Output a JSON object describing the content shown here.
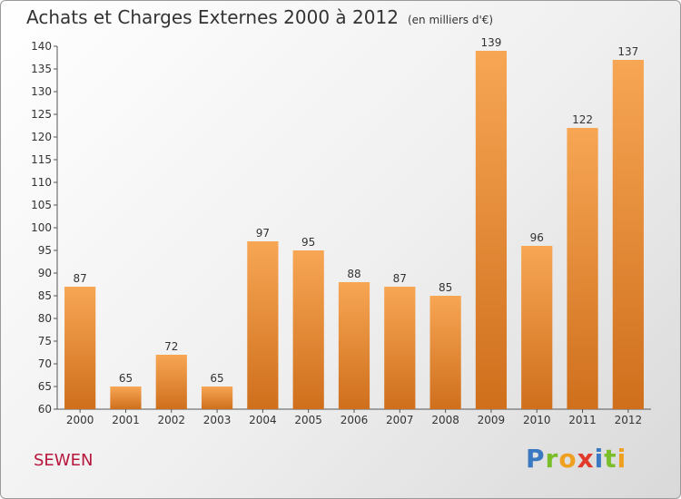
{
  "title": "Achats et Charges Externes 2000 à 2012",
  "unit": "(en milliers d'€)",
  "commune": "SEWEN",
  "logo": {
    "p": "P",
    "r": "r",
    "o": "o",
    "x": "x",
    "i": "i",
    "t": "t",
    "i2": "i"
  },
  "colors": {
    "bar_light": "#f7a654",
    "bar_dark": "#cf6f1c",
    "axis": "#555555",
    "grid": "#cccccc"
  },
  "chart_data": {
    "type": "bar",
    "title": "Achats et Charges Externes 2000 à 2012",
    "subtitle": "(en milliers d'€)",
    "categories": [
      "2000",
      "2001",
      "2002",
      "2003",
      "2004",
      "2005",
      "2006",
      "2007",
      "2008",
      "2009",
      "2010",
      "2011",
      "2012"
    ],
    "values": [
      87,
      65,
      72,
      65,
      97,
      95,
      88,
      87,
      85,
      139,
      96,
      122,
      137
    ],
    "ylim": [
      60,
      140
    ],
    "yticks": [
      60,
      65,
      70,
      75,
      80,
      85,
      90,
      95,
      100,
      105,
      110,
      115,
      120,
      125,
      130,
      135,
      140
    ],
    "grid": false,
    "legend": false
  }
}
